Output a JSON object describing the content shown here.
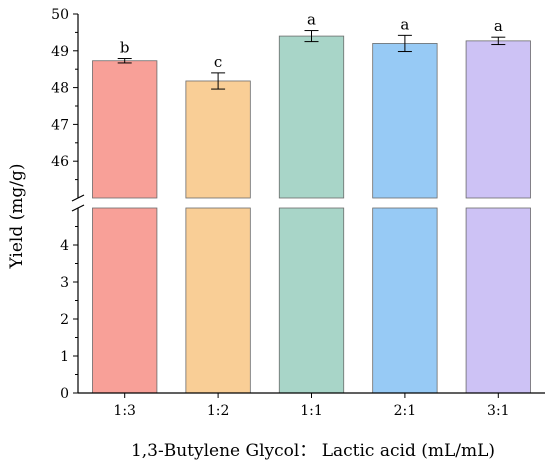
{
  "chart_data": {
    "type": "bar",
    "xlabel": "1,3-Butylene Glycol： Lactic acid (mL/mL)",
    "ylabel": "Yield (mg/g)",
    "categories": [
      "1:3",
      "1:2",
      "1:1",
      "2:1",
      "3:1"
    ],
    "values": [
      48.73,
      48.18,
      49.4,
      49.2,
      49.27
    ],
    "errors": [
      0.06,
      0.22,
      0.15,
      0.22,
      0.1
    ],
    "significance": [
      "b",
      "c",
      "a",
      "a",
      "a"
    ],
    "colors": [
      "#F8A098",
      "#F9CE96",
      "#A8D5C8",
      "#97CAF5",
      "#CDC2F5"
    ],
    "y_axis_broken": true,
    "y_lower_range": [
      0,
      5
    ],
    "y_upper_range": [
      45,
      50
    ],
    "y_lower_ticks": [
      "0",
      "1",
      "2",
      "3",
      "4"
    ],
    "y_upper_ticks": [
      "46",
      "47",
      "48",
      "49",
      "50"
    ],
    "grid": false,
    "legend": "none"
  }
}
